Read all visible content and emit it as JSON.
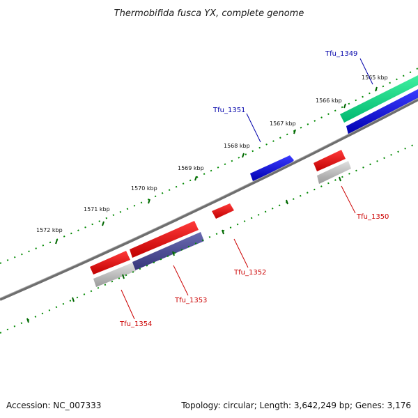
{
  "map": {
    "title": "Thermobifida fusca YX, complete genome",
    "accession": "Accession: NC_007333",
    "summary": "Topology: circular; Length: 3,642,249 bp; Genes: 3,176",
    "tick_labels": [
      "1565 kbp",
      "1566 kbp",
      "1567 kbp",
      "1568 kbp",
      "1569 kbp",
      "1570 kbp",
      "1571 kbp",
      "1572 kbp"
    ],
    "genes": [
      {
        "name": "Tfu_1349",
        "strand": "forward",
        "color": "#0000cc"
      },
      {
        "name": "Tfu_1350",
        "strand": "reverse",
        "color": "#cc0000"
      },
      {
        "name": "Tfu_1351",
        "strand": "forward",
        "color": "#0000cc"
      },
      {
        "name": "Tfu_1352",
        "strand": "reverse",
        "color": "#cc0000"
      },
      {
        "name": "Tfu_1353",
        "strand": "reverse",
        "color": "#cc0000"
      },
      {
        "name": "Tfu_1354",
        "strand": "reverse",
        "color": "#cc0000"
      }
    ],
    "colors": {
      "backbone": "#777777",
      "forward_cds": "#0000dd",
      "reverse_cds": "#ee0000",
      "orf_track": "#00d080",
      "gc_track": "#4a4a8c",
      "rrna_track": "#b0b0b0",
      "ticks": "#007700"
    }
  }
}
